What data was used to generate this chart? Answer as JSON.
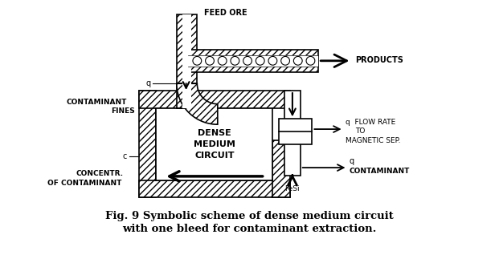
{
  "title_line1": "Fig. 9 Symbolic scheme of dense medium circuit",
  "title_line2": "with one bleed for contaminant extraction.",
  "bg_color": "#ffffff",
  "label_feed_ore": "FEED ORE",
  "label_products": "PRODUCTS",
  "label_q_top": "q",
  "label_contaminant_fines1": "CONTAMINANT",
  "label_contaminant_fines2": "FINES",
  "label_dense_medium": "DENSE\nMEDIUM\nCIRCUIT",
  "label_q_flow": "q  FLOW RATE\n       TO\nMAGNETIC SEP.",
  "label_q_contaminant": "q",
  "label_contaminant": "CONTAMINANT",
  "label_fesi": "FeSi",
  "label_c": "c",
  "label_concentr1": "CONCENTR.",
  "label_concentr2": "OF CONTAMINANT",
  "fig_width": 6.21,
  "fig_height": 3.28
}
